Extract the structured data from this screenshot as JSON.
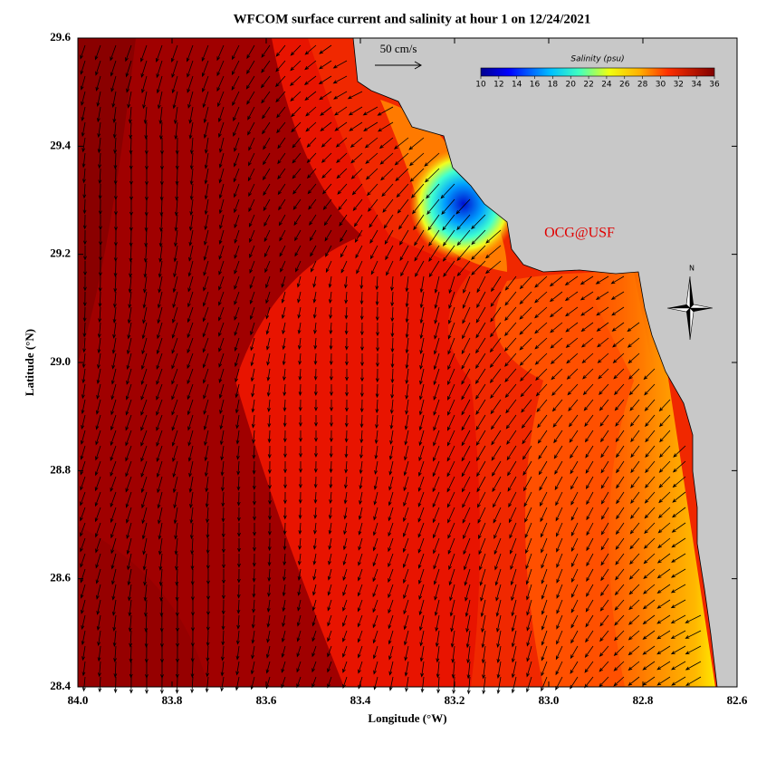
{
  "title": "WFCOM surface current and salinity at hour 1 on 12/24/2021",
  "x_axis": {
    "label": "Longitude (°W)",
    "lim": [
      84.0,
      82.6
    ],
    "ticks": [
      {
        "value": 84.0,
        "label": "84.0"
      },
      {
        "value": 83.8,
        "label": "83.8"
      },
      {
        "value": 83.6,
        "label": "83.6"
      },
      {
        "value": 83.4,
        "label": "83.4"
      },
      {
        "value": 83.2,
        "label": "83.2"
      },
      {
        "value": 83.0,
        "label": "83.0"
      },
      {
        "value": 82.8,
        "label": "82.8"
      },
      {
        "value": 82.6,
        "label": "82.6"
      }
    ]
  },
  "y_axis": {
    "label": "Latitude (°N)",
    "lim": [
      28.4,
      29.6
    ],
    "ticks": [
      {
        "value": 28.4,
        "label": "28.4"
      },
      {
        "value": 28.6,
        "label": "28.6"
      },
      {
        "value": 28.8,
        "label": "28.8"
      },
      {
        "value": 29.0,
        "label": "29.0"
      },
      {
        "value": 29.2,
        "label": "29.2"
      },
      {
        "value": 29.4,
        "label": "29.4"
      },
      {
        "value": 29.6,
        "label": "29.6"
      }
    ]
  },
  "colorbar": {
    "title": "Salinity (psu)",
    "lim": [
      10,
      36
    ],
    "ticks": [
      10,
      12,
      14,
      16,
      18,
      20,
      22,
      24,
      26,
      28,
      30,
      32,
      34,
      36
    ]
  },
  "scale_label": "50 cm/s",
  "credit": "OCG@USF",
  "compass_label": "N"
}
